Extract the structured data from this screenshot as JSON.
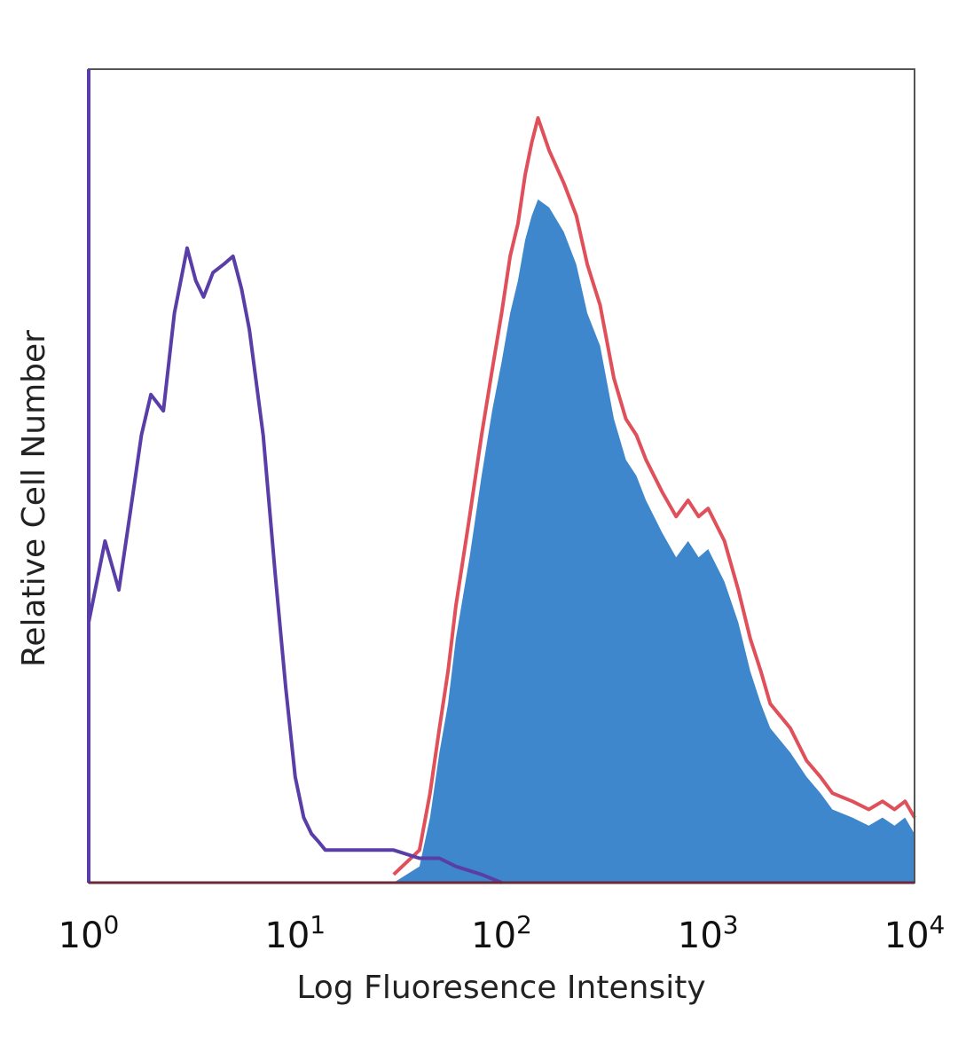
{
  "chart_data": {
    "type": "area",
    "title": "",
    "xlabel": "Log Fluoresence Intensity",
    "ylabel": "Relative Cell Number",
    "x_scale": "log",
    "xlim": [
      1,
      10000
    ],
    "ylim": [
      0,
      1
    ],
    "grid": false,
    "legend": "none",
    "x_tick_labels": [
      {
        "base": "10",
        "exp": "0"
      },
      {
        "base": "10",
        "exp": "1"
      },
      {
        "base": "10",
        "exp": "2"
      },
      {
        "base": "10",
        "exp": "3"
      },
      {
        "base": "10",
        "exp": "4"
      }
    ],
    "colors": {
      "isotype": "#5a3ea8",
      "stained_fill": "#3e87cc",
      "stained_outline": "#e0505a",
      "frame": "#555555"
    },
    "series": [
      {
        "style": "line",
        "color": "#5a3ea8",
        "x": [
          1,
          1.2,
          1.4,
          1.6,
          1.8,
          2,
          2.3,
          2.6,
          3,
          3.3,
          3.6,
          4,
          4.5,
          5,
          5.5,
          6,
          7,
          8,
          9,
          10,
          11,
          12,
          13,
          14,
          16,
          20,
          25,
          30,
          40,
          50,
          60,
          80,
          100
        ],
        "values": [
          0.32,
          0.42,
          0.36,
          0.46,
          0.55,
          0.6,
          0.58,
          0.7,
          0.78,
          0.74,
          0.72,
          0.75,
          0.76,
          0.77,
          0.73,
          0.68,
          0.55,
          0.38,
          0.24,
          0.13,
          0.08,
          0.06,
          0.05,
          0.04,
          0.04,
          0.04,
          0.04,
          0.04,
          0.03,
          0.03,
          0.02,
          0.01,
          0.0
        ]
      },
      {
        "style": "filled",
        "color": "#3e87cc",
        "x": [
          30,
          40,
          45,
          50,
          55,
          60,
          70,
          80,
          90,
          100,
          110,
          120,
          130,
          140,
          150,
          170,
          200,
          230,
          260,
          300,
          350,
          400,
          450,
          500,
          600,
          700,
          800,
          900,
          1000,
          1200,
          1400,
          1600,
          1800,
          2000,
          2500,
          3000,
          3500,
          4000,
          5000,
          6000,
          7000,
          8000,
          9000,
          10000
        ],
        "values": [
          0.0,
          0.02,
          0.08,
          0.16,
          0.22,
          0.3,
          0.4,
          0.5,
          0.58,
          0.64,
          0.7,
          0.74,
          0.79,
          0.82,
          0.84,
          0.83,
          0.8,
          0.76,
          0.7,
          0.66,
          0.57,
          0.52,
          0.5,
          0.47,
          0.43,
          0.4,
          0.42,
          0.4,
          0.41,
          0.37,
          0.32,
          0.26,
          0.22,
          0.19,
          0.16,
          0.13,
          0.11,
          0.09,
          0.08,
          0.07,
          0.08,
          0.07,
          0.08,
          0.06
        ]
      },
      {
        "style": "line",
        "color": "#e0505a",
        "x": [
          30,
          40,
          45,
          50,
          55,
          60,
          70,
          80,
          90,
          100,
          110,
          120,
          130,
          140,
          150,
          170,
          200,
          230,
          260,
          300,
          350,
          400,
          450,
          500,
          600,
          700,
          800,
          900,
          1000,
          1200,
          1400,
          1600,
          1800,
          2000,
          2500,
          3000,
          3500,
          4000,
          5000,
          6000,
          7000,
          8000,
          9000,
          10000
        ],
        "values": [
          0.01,
          0.04,
          0.11,
          0.19,
          0.26,
          0.34,
          0.45,
          0.55,
          0.63,
          0.7,
          0.77,
          0.81,
          0.87,
          0.91,
          0.94,
          0.9,
          0.86,
          0.82,
          0.76,
          0.71,
          0.62,
          0.57,
          0.55,
          0.52,
          0.48,
          0.45,
          0.47,
          0.45,
          0.46,
          0.42,
          0.36,
          0.3,
          0.26,
          0.22,
          0.19,
          0.15,
          0.13,
          0.11,
          0.1,
          0.09,
          0.1,
          0.09,
          0.1,
          0.08
        ]
      }
    ]
  }
}
